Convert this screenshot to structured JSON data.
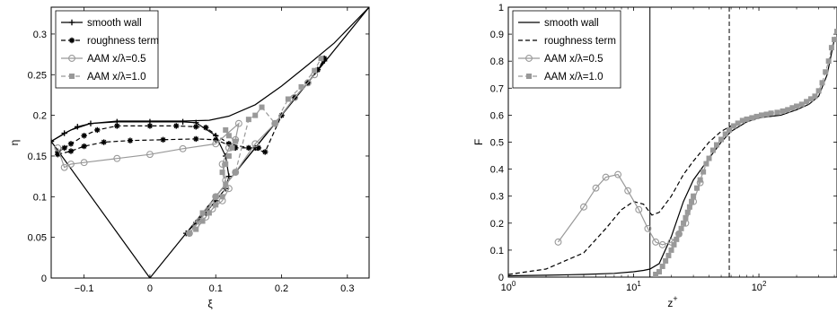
{
  "chart_data": [
    {
      "type": "line",
      "xlabel": "ξ",
      "ylabel": "η",
      "xlim": [
        -0.15,
        0.333
      ],
      "ylim": [
        0,
        0.333
      ],
      "xticks": [
        -0.1,
        0,
        0.1,
        0.2,
        0.3
      ],
      "yticks": [
        0,
        0.05,
        0.1,
        0.15,
        0.2,
        0.25,
        0.3
      ],
      "xtick_labels": [
        "−0.1",
        "0",
        "0.1",
        "0.2",
        "0.3"
      ],
      "ytick_labels": [
        "0",
        "0.05",
        "0.1",
        "0.15",
        "0.2",
        "0.25",
        "0.3"
      ],
      "legend_position": "top-left",
      "boundaries": [
        {
          "points": [
            [
              -0.15,
              0.168
            ],
            [
              0,
              0
            ],
            [
              0.333,
              0.333
            ]
          ]
        },
        {
          "points": [
            [
              -0.15,
              0.168
            ],
            [
              -0.12,
              0.182
            ],
            [
              -0.09,
              0.19
            ],
            [
              -0.05,
              0.193
            ],
            [
              0,
              0.193
            ],
            [
              0.05,
              0.193
            ],
            [
              0.09,
              0.194
            ],
            [
              0.12,
              0.199
            ],
            [
              0.16,
              0.213
            ],
            [
              0.2,
              0.236
            ],
            [
              0.24,
              0.262
            ],
            [
              0.28,
              0.289
            ],
            [
              0.333,
              0.333
            ]
          ]
        }
      ],
      "series": [
        {
          "name": "smooth wall",
          "style": "solid",
          "color": "#000000",
          "marker": "plus",
          "points": [
            [
              -0.15,
              0.168
            ],
            [
              -0.13,
              0.178
            ],
            [
              -0.11,
              0.186
            ],
            [
              -0.09,
              0.19
            ],
            [
              -0.05,
              0.192
            ],
            [
              0,
              0.192
            ],
            [
              0.05,
              0.192
            ],
            [
              0.07,
              0.191
            ],
            [
              0.1,
              0.175
            ],
            [
              0.115,
              0.15
            ],
            [
              0.12,
              0.125
            ],
            [
              0.115,
              0.11
            ],
            [
              0.1,
              0.095
            ],
            [
              0.085,
              0.08
            ],
            [
              0.07,
              0.068
            ],
            [
              0.055,
              0.055
            ],
            [
              0.07,
              0.068
            ],
            [
              0.1,
              0.1
            ],
            [
              0.13,
              0.13
            ],
            [
              0.16,
              0.16
            ],
            [
              0.19,
              0.19
            ],
            [
              0.22,
              0.222
            ],
            [
              0.24,
              0.24
            ],
            [
              0.255,
              0.256
            ],
            [
              0.265,
              0.267
            ]
          ]
        },
        {
          "name": "roughness term",
          "style": "dashed",
          "color": "#000000",
          "marker": "star",
          "points": [
            [
              -0.14,
              0.155
            ],
            [
              -0.13,
              0.16
            ],
            [
              -0.12,
              0.165
            ],
            [
              -0.1,
              0.175
            ],
            [
              -0.08,
              0.182
            ],
            [
              -0.05,
              0.187
            ],
            [
              0,
              0.187
            ],
            [
              0.04,
              0.187
            ],
            [
              0.07,
              0.186
            ],
            [
              0.085,
              0.185
            ],
            [
              0.12,
              0.165
            ],
            [
              0.15,
              0.16
            ],
            [
              0.175,
              0.155
            ],
            [
              0.2,
              0.2
            ],
            [
              0.22,
              0.222
            ],
            [
              0.24,
              0.24
            ],
            [
              0.255,
              0.256
            ],
            [
              0.265,
              0.27
            ]
          ]
        },
        {
          "name": "roughness term",
          "style": "dashed",
          "color": "#000000",
          "marker": "star",
          "points": [
            [
              -0.14,
              0.152
            ],
            [
              -0.12,
              0.156
            ],
            [
              -0.1,
              0.162
            ],
            [
              -0.07,
              0.167
            ],
            [
              -0.03,
              0.169
            ],
            [
              0.02,
              0.17
            ],
            [
              0.07,
              0.171
            ],
            [
              0.1,
              0.17
            ],
            [
              0.13,
              0.16
            ],
            [
              0.165,
              0.16
            ]
          ]
        },
        {
          "name": "AAM x/λ=0.5",
          "style": "solid",
          "color": "#999999",
          "marker": "circle",
          "points": [
            [
              -0.14,
              0.16
            ],
            [
              -0.13,
              0.136
            ],
            [
              -0.12,
              0.14
            ],
            [
              -0.1,
              0.142
            ],
            [
              -0.05,
              0.147
            ],
            [
              0,
              0.152
            ],
            [
              0.05,
              0.159
            ],
            [
              0.1,
              0.165
            ],
            [
              0.135,
              0.19
            ],
            [
              0.13,
              0.17
            ],
            [
              0.12,
              0.16
            ],
            [
              0.11,
              0.14
            ],
            [
              0.115,
              0.12
            ],
            [
              0.12,
              0.11
            ],
            [
              0.11,
              0.095
            ],
            [
              0.095,
              0.085
            ],
            [
              0.085,
              0.075
            ],
            [
              0.07,
              0.065
            ],
            [
              0.06,
              0.055
            ],
            [
              0.075,
              0.07
            ],
            [
              0.1,
              0.1
            ],
            [
              0.13,
              0.13
            ],
            [
              0.16,
              0.165
            ],
            [
              0.19,
              0.19
            ],
            [
              0.22,
              0.222
            ],
            [
              0.24,
              0.24
            ],
            [
              0.25,
              0.25
            ]
          ]
        },
        {
          "name": "AAM x/λ=1.0",
          "style": "dashed",
          "color": "#999999",
          "marker": "square",
          "points": [
            [
              0.115,
              0.182
            ],
            [
              0.12,
              0.175
            ],
            [
              0.13,
              0.168
            ],
            [
              0.125,
              0.16
            ],
            [
              0.12,
              0.15
            ],
            [
              0.115,
              0.14
            ],
            [
              0.11,
              0.13
            ],
            [
              0.115,
              0.115
            ],
            [
              0.11,
              0.1
            ],
            [
              0.1,
              0.09
            ],
            [
              0.09,
              0.08
            ],
            [
              0.08,
              0.07
            ],
            [
              0.07,
              0.06
            ],
            [
              0.06,
              0.055
            ],
            [
              0.08,
              0.08
            ],
            [
              0.1,
              0.1
            ],
            [
              0.13,
              0.13
            ],
            [
              0.15,
              0.195
            ],
            [
              0.16,
              0.2
            ],
            [
              0.17,
              0.21
            ],
            [
              0.19,
              0.19
            ],
            [
              0.21,
              0.22
            ],
            [
              0.23,
              0.235
            ],
            [
              0.25,
              0.255
            ],
            [
              0.26,
              0.27
            ]
          ]
        }
      ]
    },
    {
      "type": "line",
      "xlabel": "z",
      "xlabel_sup": "+",
      "ylabel": "F",
      "xscale": "log",
      "xlim": [
        1,
        420
      ],
      "ylim": [
        0,
        1
      ],
      "xticks": [
        1,
        10,
        100
      ],
      "xtick_labels": [
        [
          "10",
          "0"
        ],
        [
          "10",
          "1"
        ],
        [
          "10",
          "2"
        ]
      ],
      "yticks": [
        0,
        0.1,
        0.2,
        0.3,
        0.4,
        0.5,
        0.6,
        0.7,
        0.8,
        0.9,
        1
      ],
      "ytick_labels": [
        "0",
        "0.1",
        "0.2",
        "0.3",
        "0.4",
        "0.5",
        "0.6",
        "0.7",
        "0.8",
        "0.9",
        "1"
      ],
      "vertical_lines": [
        {
          "x": 13.5,
          "style": "solid"
        },
        {
          "x": 58,
          "style": "dashed"
        }
      ],
      "legend_position": "top-left",
      "series": [
        {
          "name": "smooth wall",
          "style": "solid",
          "color": "#000000",
          "marker": "none",
          "points": [
            [
              1,
              0.005
            ],
            [
              2,
              0.007
            ],
            [
              4,
              0.01
            ],
            [
              7,
              0.014
            ],
            [
              10,
              0.02
            ],
            [
              12,
              0.025
            ],
            [
              13.5,
              0.03
            ],
            [
              16,
              0.05
            ],
            [
              20,
              0.15
            ],
            [
              25,
              0.28
            ],
            [
              30,
              0.36
            ],
            [
              40,
              0.44
            ],
            [
              50,
              0.5
            ],
            [
              60,
              0.54
            ],
            [
              80,
              0.575
            ],
            [
              100,
              0.59
            ],
            [
              150,
              0.6
            ],
            [
              200,
              0.62
            ],
            [
              250,
              0.64
            ],
            [
              300,
              0.67
            ],
            [
              350,
              0.75
            ],
            [
              400,
              0.88
            ]
          ]
        },
        {
          "name": "roughness term",
          "style": "dashed",
          "color": "#000000",
          "marker": "none",
          "points": [
            [
              1,
              0.01
            ],
            [
              2,
              0.03
            ],
            [
              4,
              0.09
            ],
            [
              6,
              0.18
            ],
            [
              8,
              0.25
            ],
            [
              10,
              0.28
            ],
            [
              12,
              0.27
            ],
            [
              14,
              0.23
            ],
            [
              16,
              0.24
            ],
            [
              20,
              0.3
            ],
            [
              25,
              0.38
            ],
            [
              30,
              0.43
            ],
            [
              40,
              0.5
            ],
            [
              50,
              0.54
            ],
            [
              60,
              0.56
            ]
          ]
        },
        {
          "name": "AAM x/λ=0.5",
          "style": "solid",
          "color": "#999999",
          "marker": "circle",
          "points": [
            [
              2.5,
              0.13
            ],
            [
              4,
              0.26
            ],
            [
              5,
              0.33
            ],
            [
              6,
              0.37
            ],
            [
              7.5,
              0.38
            ],
            [
              9,
              0.32
            ],
            [
              11,
              0.25
            ],
            [
              13,
              0.18
            ],
            [
              15,
              0.13
            ],
            [
              17,
              0.12
            ],
            [
              20,
              0.13
            ],
            [
              23,
              0.16
            ],
            [
              26,
              0.2
            ],
            [
              30,
              0.28
            ],
            [
              34,
              0.35
            ]
          ]
        },
        {
          "name": "AAM x/λ=1.0",
          "style": "dashed",
          "color": "#999999",
          "marker": "square",
          "points": [
            [
              15,
              0.01
            ],
            [
              16,
              0.02
            ],
            [
              17,
              0.04
            ],
            [
              18,
              0.06
            ],
            [
              19,
              0.08
            ],
            [
              20,
              0.1
            ],
            [
              21,
              0.12
            ],
            [
              22,
              0.14
            ],
            [
              23,
              0.16
            ],
            [
              24,
              0.18
            ],
            [
              25,
              0.2
            ],
            [
              26,
              0.22
            ],
            [
              27,
              0.24
            ],
            [
              28,
              0.26
            ],
            [
              29,
              0.28
            ],
            [
              30,
              0.3
            ],
            [
              32,
              0.33
            ],
            [
              34,
              0.36
            ],
            [
              36,
              0.39
            ],
            [
              38,
              0.42
            ],
            [
              40,
              0.44
            ],
            [
              43,
              0.47
            ],
            [
              46,
              0.49
            ],
            [
              50,
              0.51
            ],
            [
              54,
              0.53
            ],
            [
              58,
              0.545
            ],
            [
              63,
              0.56
            ],
            [
              68,
              0.57
            ],
            [
              74,
              0.58
            ],
            [
              80,
              0.585
            ],
            [
              88,
              0.59
            ],
            [
              96,
              0.595
            ],
            [
              105,
              0.6
            ],
            [
              115,
              0.603
            ],
            [
              125,
              0.607
            ],
            [
              140,
              0.61
            ],
            [
              155,
              0.615
            ],
            [
              170,
              0.62
            ],
            [
              185,
              0.627
            ],
            [
              200,
              0.633
            ],
            [
              220,
              0.64
            ],
            [
              240,
              0.65
            ],
            [
              260,
              0.66
            ],
            [
              280,
              0.67
            ],
            [
              300,
              0.69
            ],
            [
              320,
              0.72
            ],
            [
              340,
              0.76
            ],
            [
              360,
              0.8
            ],
            [
              380,
              0.85
            ],
            [
              400,
              0.88
            ],
            [
              420,
              0.91
            ]
          ]
        }
      ]
    }
  ]
}
